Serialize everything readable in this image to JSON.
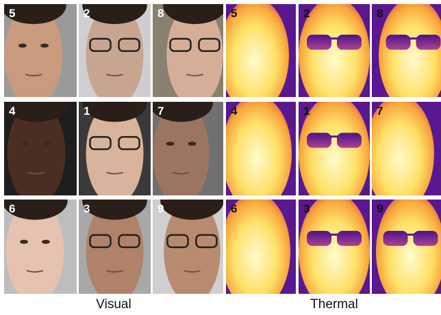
{
  "visual": {
    "caption": "Visual",
    "grid": [
      [
        5,
        2,
        8
      ],
      [
        4,
        1,
        7
      ],
      [
        6,
        3,
        9
      ]
    ]
  },
  "thermal": {
    "caption": "Thermal",
    "grid": [
      [
        5,
        2,
        8
      ],
      [
        4,
        1,
        7
      ],
      [
        6,
        3,
        9
      ]
    ]
  }
}
